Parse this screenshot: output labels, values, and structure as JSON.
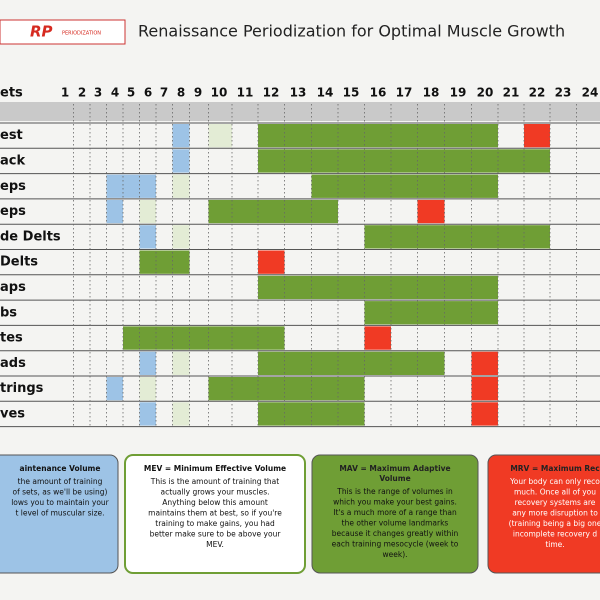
{
  "header": {
    "logo": "RP",
    "logo_sub": "PERIODIZATION",
    "title": "Renaissance Periodization for Optimal Muscle Growth"
  },
  "table": {
    "corner": "ets",
    "columns": [
      1,
      2,
      3,
      4,
      5,
      6,
      7,
      8,
      9,
      10,
      11,
      12,
      13,
      14,
      15,
      16,
      17,
      18,
      19,
      20,
      21,
      22,
      23,
      24
    ],
    "rows": [
      {
        "label": "est",
        "segments": [
          {
            "from": 8,
            "to": 8,
            "color": "#9dc3e6"
          },
          {
            "from": 10,
            "to": 10,
            "color": "#e3ecd5"
          },
          {
            "from": 12,
            "to": 20,
            "color": "#6f9e35"
          },
          {
            "from": 22,
            "to": 22,
            "color": "#f03a24"
          }
        ]
      },
      {
        "label": "ack",
        "segments": [
          {
            "from": 8,
            "to": 8,
            "color": "#9dc3e6"
          },
          {
            "from": 12,
            "to": 22,
            "color": "#6f9e35"
          }
        ]
      },
      {
        "label": "eps",
        "segments": [
          {
            "from": 4,
            "to": 6,
            "color": "#9dc3e6"
          },
          {
            "from": 8,
            "to": 8,
            "color": "#e3ecd5"
          },
          {
            "from": 14,
            "to": 20,
            "color": "#6f9e35"
          }
        ]
      },
      {
        "label": "eps",
        "segments": [
          {
            "from": 4,
            "to": 4,
            "color": "#9dc3e6"
          },
          {
            "from": 6,
            "to": 6,
            "color": "#e3ecd5"
          },
          {
            "from": 10,
            "to": 14,
            "color": "#6f9e35"
          },
          {
            "from": 18,
            "to": 18,
            "color": "#f03a24"
          }
        ]
      },
      {
        "label": "de Delts",
        "segments": [
          {
            "from": 6,
            "to": 6,
            "color": "#9dc3e6"
          },
          {
            "from": 8,
            "to": 8,
            "color": "#e3ecd5"
          },
          {
            "from": 16,
            "to": 22,
            "color": "#6f9e35"
          }
        ]
      },
      {
        "label": "Delts",
        "segments": [
          {
            "from": 6,
            "to": 8,
            "color": "#6f9e35"
          },
          {
            "from": 12,
            "to": 12,
            "color": "#f03a24"
          }
        ]
      },
      {
        "label": "aps",
        "segments": [
          {
            "from": 12,
            "to": 20,
            "color": "#6f9e35"
          }
        ]
      },
      {
        "label": "bs",
        "segments": [
          {
            "from": 16,
            "to": 20,
            "color": "#6f9e35"
          }
        ]
      },
      {
        "label": "tes",
        "segments": [
          {
            "from": 5,
            "to": 12,
            "color": "#6f9e35"
          },
          {
            "from": 16,
            "to": 16,
            "color": "#f03a24"
          }
        ]
      },
      {
        "label": "ads",
        "segments": [
          {
            "from": 6,
            "to": 6,
            "color": "#9dc3e6"
          },
          {
            "from": 8,
            "to": 8,
            "color": "#e3ecd5"
          },
          {
            "from": 12,
            "to": 18,
            "color": "#6f9e35"
          },
          {
            "from": 20,
            "to": 20,
            "color": "#f03a24"
          }
        ]
      },
      {
        "label": "trings",
        "segments": [
          {
            "from": 4,
            "to": 4,
            "color": "#9dc3e6"
          },
          {
            "from": 6,
            "to": 6,
            "color": "#e3ecd5"
          },
          {
            "from": 10,
            "to": 15,
            "color": "#6f9e35"
          },
          {
            "from": 20,
            "to": 20,
            "color": "#f03a24"
          }
        ]
      },
      {
        "label": "ves",
        "segments": [
          {
            "from": 6,
            "to": 6,
            "color": "#9dc3e6"
          },
          {
            "from": 8,
            "to": 8,
            "color": "#e3ecd5"
          },
          {
            "from": 12,
            "to": 15,
            "color": "#6f9e35"
          },
          {
            "from": 20,
            "to": 20,
            "color": "#f03a24"
          }
        ]
      }
    ]
  },
  "boxes": [
    {
      "color": "#9dc3e6",
      "title": [
        "aintenance Volume"
      ],
      "body": [
        "the amount of training",
        "of sets, as we'll be using)",
        "lows you to maintain your",
        "t level of muscular size."
      ]
    },
    {
      "color": "#ffffff",
      "title": [
        "MEV = Minimum Effective Volume"
      ],
      "body": [
        "This is the amount of training that",
        "actually grows your muscles.",
        "Anything below this amount",
        "maintains them at best, so if you're",
        "training to make gains, you had",
        "better make sure to be above your",
        "MEV."
      ]
    },
    {
      "color": "#6f9e35",
      "title": [
        "MAV = Maximum Adaptive",
        "Volume"
      ],
      "body": [
        "This is the range of volumes in",
        "which you make your best gains.",
        "It's a much more of a range than",
        "the other volume landmarks",
        "because it changes greatly within",
        "each training mesocycle (week to",
        "week)."
      ]
    },
    {
      "color": "#f03a24",
      "title": [
        "MRV = Maximum Rec"
      ],
      "body": [
        "Your body can only reco",
        "much. Once all of you",
        "recovery systems are",
        "any more disruption to",
        "(training being a big one",
        "incomplete recovery d",
        "time."
      ]
    }
  ]
}
